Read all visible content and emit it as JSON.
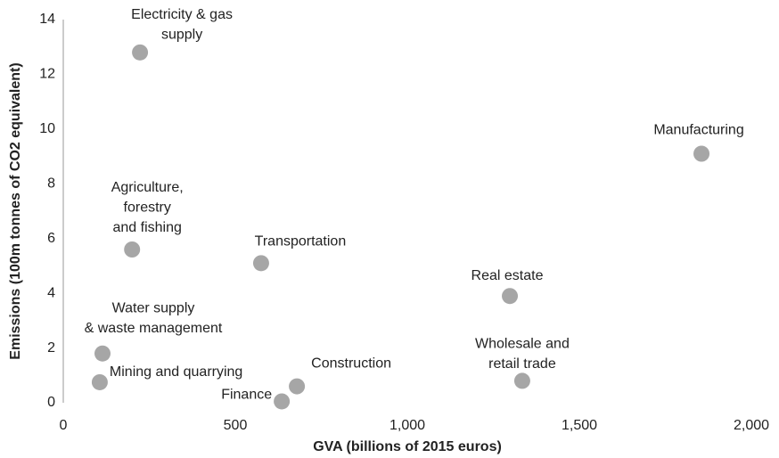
{
  "chart_data": {
    "type": "scatter",
    "x_label": "GVA (billions of 2015 euros)",
    "y_label": "Emissions (100m tonnes of CO2 equivalent)",
    "color": "#a6a6a6",
    "labels": [
      [
        "Electricity & gas",
        "supply"
      ],
      [
        "Manufacturing"
      ],
      [
        "Agriculture,",
        "forestry",
        "and fishing"
      ],
      [
        "Transportation"
      ],
      [
        "Real estate"
      ],
      [
        "Water supply",
        "& waste management"
      ],
      [
        "Mining and quarrying"
      ],
      [
        "Finance"
      ],
      [
        "Construction"
      ],
      [
        "Wholesale and",
        "retail trade"
      ]
    ],
    "x": [
      223,
      1855,
      200,
      575,
      1298,
      114,
      106,
      635,
      679,
      1334
    ],
    "values": [
      12.8,
      9.1,
      5.6,
      5.1,
      3.9,
      1.8,
      0.75,
      0.05,
      0.6,
      0.8
    ],
    "xlim": [
      0,
      2000
    ],
    "xticks": [
      0,
      500,
      {
        "value": 1000,
        "label": "1,000"
      },
      {
        "value": 1500,
        "label": "1,500"
      },
      {
        "value": 2000,
        "label": "2,000"
      }
    ],
    "ylim": [
      0,
      14
    ],
    "yticks": [
      0,
      2,
      4,
      6,
      8,
      10,
      12,
      14
    ]
  }
}
